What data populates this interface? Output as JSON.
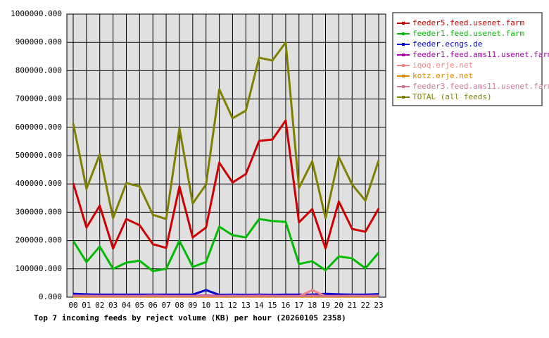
{
  "chart_data": {
    "type": "line",
    "title": "Top 7 incoming feeds by reject volume (KB) per hour (20260105 2358)",
    "categories": [
      "00",
      "01",
      "02",
      "03",
      "04",
      "05",
      "06",
      "07",
      "08",
      "09",
      "10",
      "11",
      "12",
      "13",
      "14",
      "15",
      "16",
      "17",
      "18",
      "19",
      "20",
      "21",
      "22",
      "23"
    ],
    "series": [
      {
        "name": "feeder5.feed.usenet.farm",
        "color": "#cc0000",
        "values": [
          403000,
          246000,
          323000,
          172000,
          276000,
          254000,
          187000,
          174000,
          391000,
          211000,
          246000,
          475000,
          405000,
          435000,
          552000,
          557000,
          624000,
          264000,
          311000,
          172000,
          338000,
          241000,
          231000,
          313000
        ]
      },
      {
        "name": "feeder1.feed.usenet.farm",
        "color": "#00bb00",
        "values": [
          199000,
          124000,
          179000,
          100000,
          122000,
          129000,
          92000,
          100000,
          199000,
          107000,
          124000,
          249000,
          219000,
          211000,
          276000,
          269000,
          266000,
          117000,
          127000,
          95000,
          144000,
          137000,
          102000,
          157000
        ]
      },
      {
        "name": "feeder.ecngs.de",
        "color": "#0000cc",
        "values": [
          12000,
          10000,
          9000,
          9000,
          9000,
          9000,
          9000,
          9000,
          9000,
          9000,
          25000,
          8000,
          9000,
          8000,
          9000,
          8000,
          9000,
          9000,
          9000,
          12000,
          10000,
          9000,
          9000,
          11000
        ]
      },
      {
        "name": "feeder1.feed.ams11.usenet.farm",
        "color": "#aa00aa",
        "values": [
          6000,
          5000,
          5000,
          5000,
          5000,
          5000,
          6000,
          5000,
          5000,
          5000,
          6000,
          5000,
          5000,
          5000,
          6000,
          5000,
          5000,
          5000,
          6000,
          5000,
          5000,
          5000,
          5000,
          6000
        ]
      },
      {
        "name": "iqoq.erje.net",
        "color": "#ee8888",
        "values": [
          3000,
          3000,
          3000,
          3000,
          3000,
          3000,
          3000,
          3000,
          3000,
          3000,
          3000,
          3000,
          3000,
          3000,
          3000,
          3000,
          3000,
          3000,
          25000,
          3000,
          3000,
          3000,
          3000,
          3000
        ]
      },
      {
        "name": "kotz.erje.net",
        "color": "#dd8800",
        "values": [
          2000,
          2000,
          2000,
          2000,
          2000,
          2000,
          2000,
          2000,
          2000,
          2000,
          2000,
          2000,
          2000,
          2000,
          2000,
          2000,
          2000,
          2000,
          2000,
          2000,
          2000,
          2000,
          2000,
          2000
        ]
      },
      {
        "name": "feeder3.feed.ams11.usenet.farm",
        "color": "#cc7799",
        "values": [
          5000,
          5000,
          4000,
          4000,
          4000,
          4000,
          5000,
          4000,
          4000,
          4000,
          5000,
          4000,
          5000,
          4000,
          5000,
          4000,
          4000,
          4000,
          5000,
          4000,
          4000,
          5000,
          4000,
          5000
        ]
      },
      {
        "name": "TOTAL (all feeds)",
        "color": "#808000",
        "values": [
          614000,
          383000,
          505000,
          279000,
          403000,
          391000,
          291000,
          276000,
          597000,
          331000,
          398000,
          734000,
          632000,
          659000,
          846000,
          836000,
          900000,
          386000,
          480000,
          279000,
          495000,
          398000,
          341000,
          483000
        ]
      }
    ],
    "ylim": [
      0,
      1000000
    ],
    "yticks": [
      {
        "value": 0,
        "label": "0.000"
      },
      {
        "value": 100000,
        "label": "100000.000"
      },
      {
        "value": 200000,
        "label": "200000.000"
      },
      {
        "value": 300000,
        "label": "300000.000"
      },
      {
        "value": 400000,
        "label": "400000.000"
      },
      {
        "value": 500000,
        "label": "500000.000"
      },
      {
        "value": 600000,
        "label": "600000.000"
      },
      {
        "value": 700000,
        "label": "700000.000"
      },
      {
        "value": 800000,
        "label": "800000.000"
      },
      {
        "value": 900000,
        "label": "900000.000"
      },
      {
        "value": 1000000,
        "label": "1000000.000"
      }
    ],
    "grid": true
  }
}
